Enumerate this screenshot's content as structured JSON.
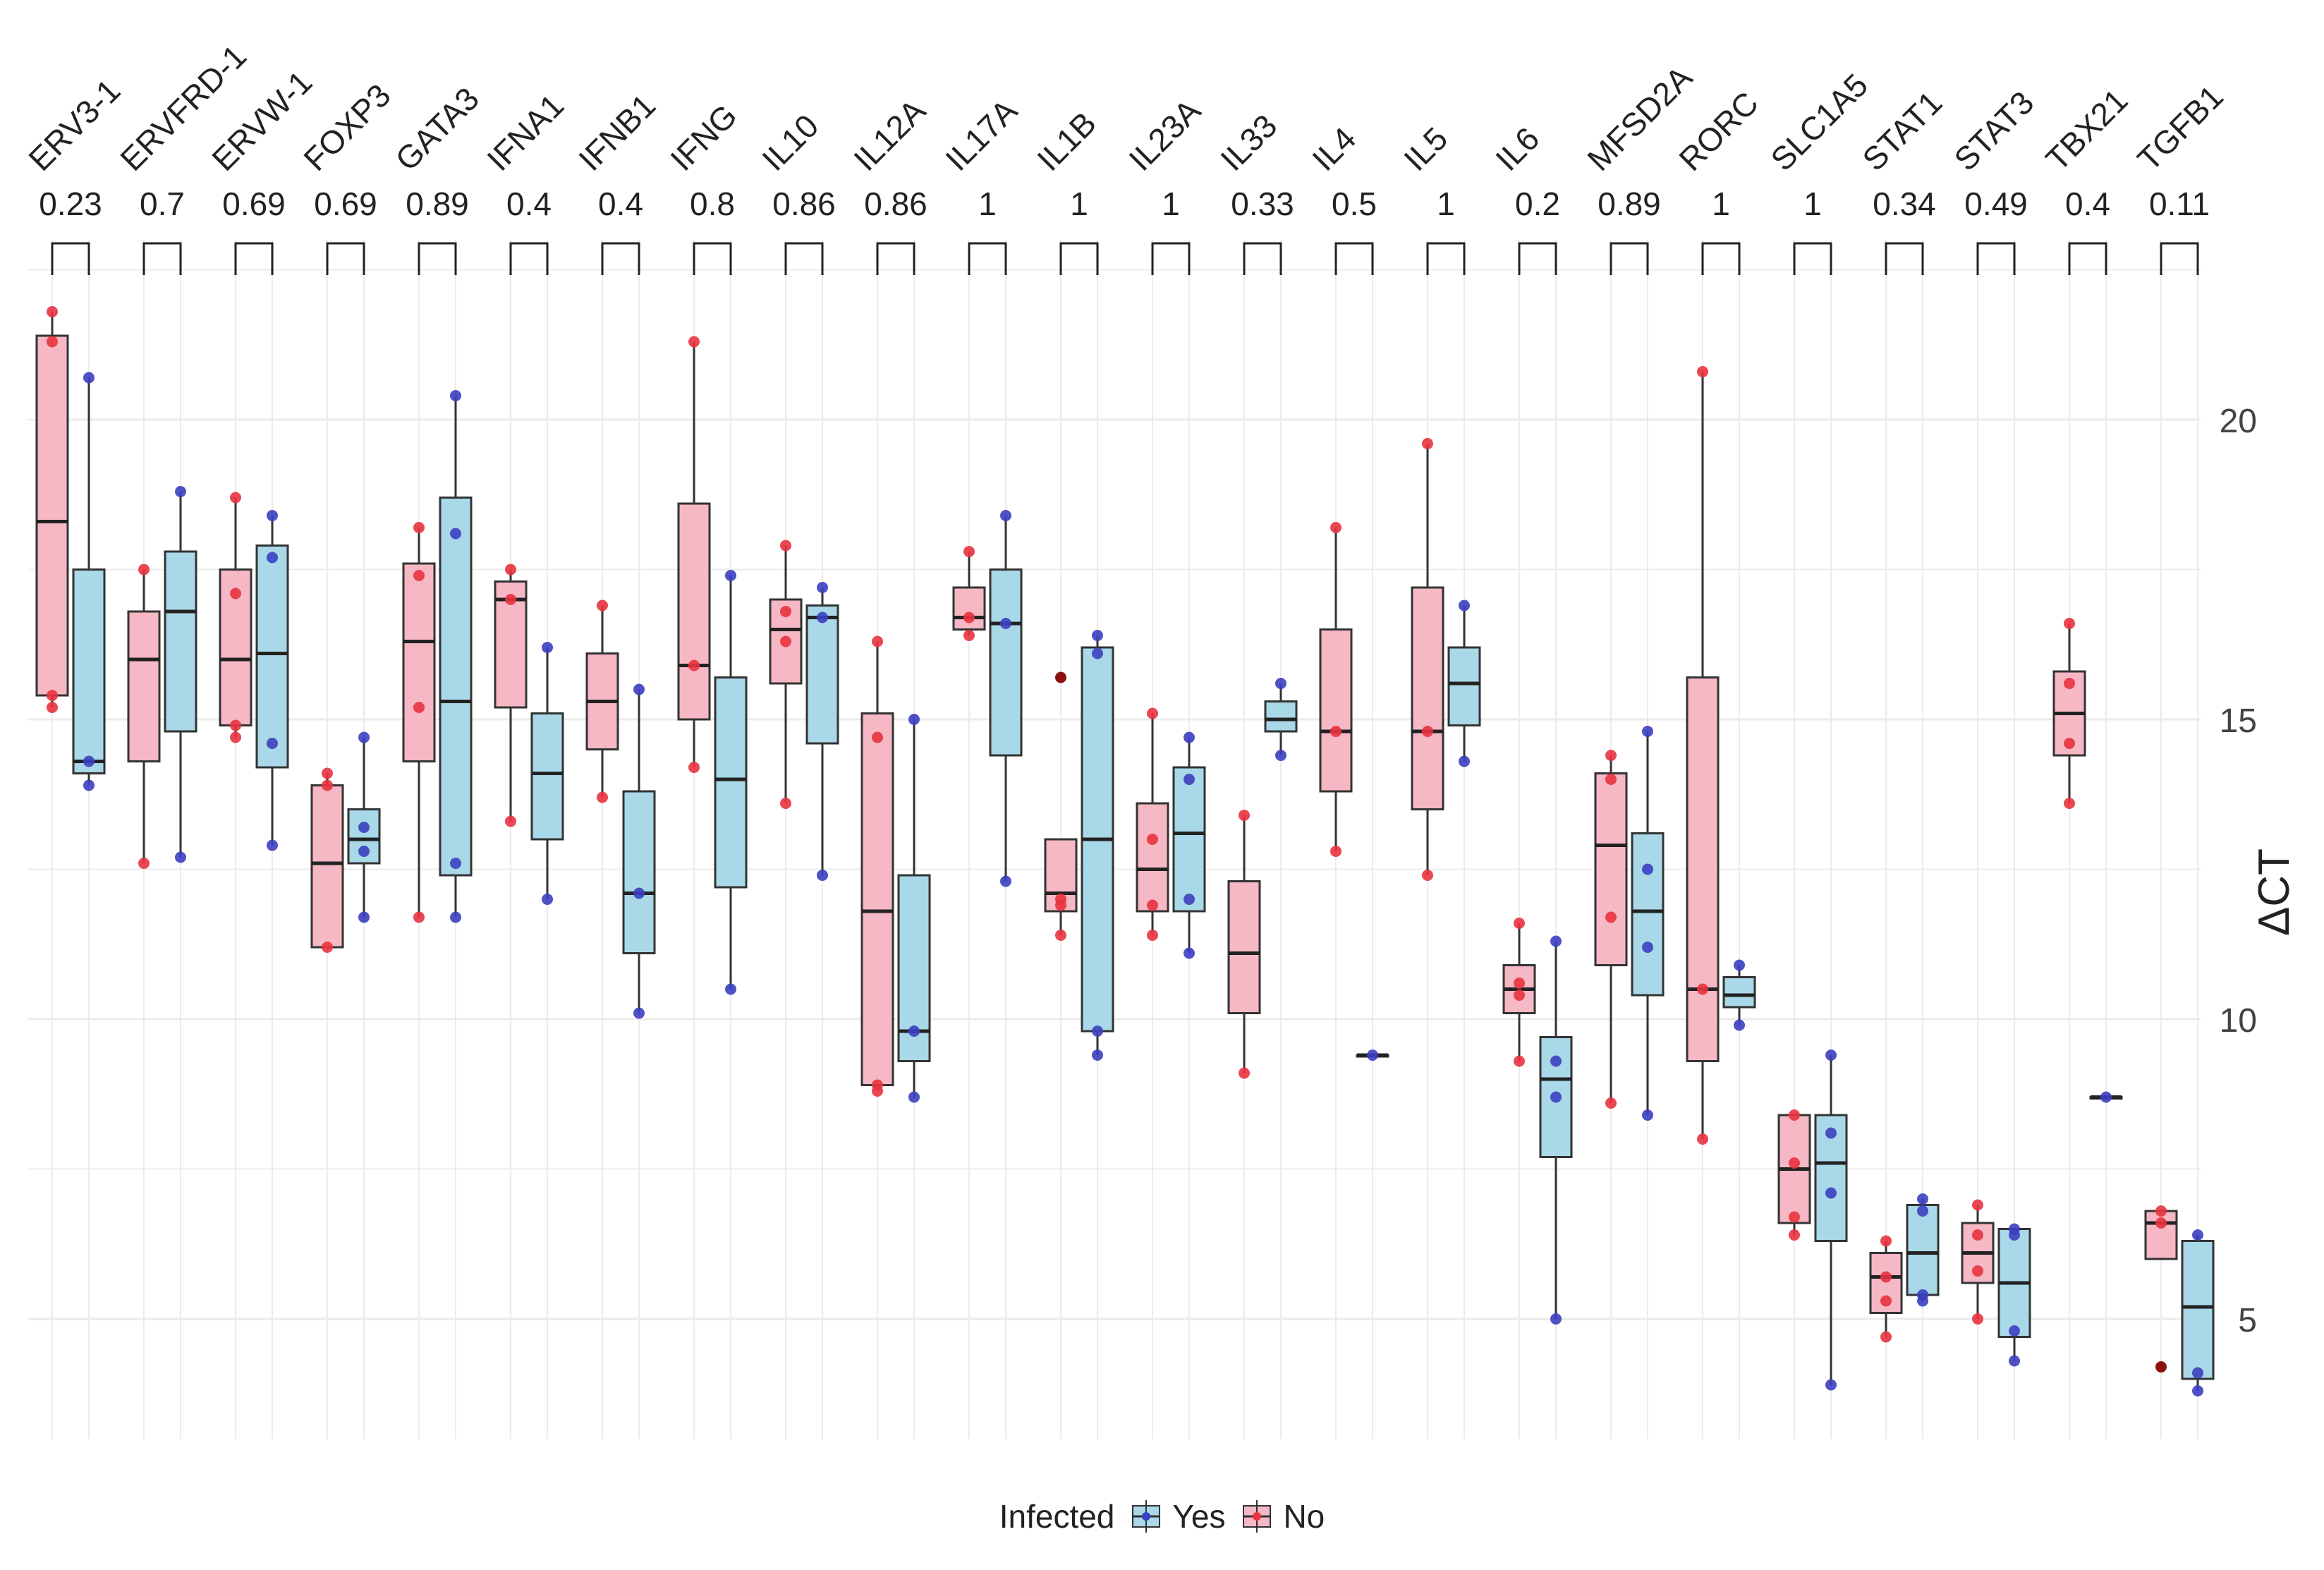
{
  "chart_data": {
    "type": "box",
    "ylabel": "ΔCT",
    "ylim": [
      3,
      23
    ],
    "yticks": [
      5,
      10,
      15,
      20
    ],
    "grid": true,
    "legend_title": "Infected",
    "legend_position": "bottom",
    "series": [
      {
        "name": "Yes",
        "color": "#a9d9e8",
        "point_color": "#3b3fc0"
      },
      {
        "name": "No",
        "color": "#f5b8c4",
        "point_color": "#e8333f"
      }
    ],
    "genes": [
      {
        "gene": "ERV3-1",
        "p": "0.23",
        "No": {
          "min": 15.2,
          "q1": 15.4,
          "median": 18.3,
          "q3": 21.4,
          "max": 21.8,
          "points": [
            21.8,
            21.3,
            15.4,
            15.2
          ]
        },
        "Yes": {
          "min": 13.9,
          "q1": 14.1,
          "median": 14.3,
          "q3": 17.5,
          "max": 20.7,
          "points": [
            20.7,
            14.3,
            13.9
          ]
        }
      },
      {
        "gene": "ERVFRD-1",
        "p": "0.7",
        "No": {
          "min": 12.6,
          "q1": 14.3,
          "median": 16.0,
          "q3": 16.8,
          "max": 17.5,
          "points": [
            17.5,
            12.6
          ]
        },
        "Yes": {
          "min": 12.7,
          "q1": 14.8,
          "median": 16.8,
          "q3": 17.8,
          "max": 18.8,
          "points": [
            18.8,
            12.7
          ]
        }
      },
      {
        "gene": "ERVW-1",
        "p": "0.69",
        "No": {
          "min": 14.7,
          "q1": 14.9,
          "median": 16.0,
          "q3": 17.5,
          "max": 18.7,
          "points": [
            18.7,
            17.1,
            14.9,
            14.7
          ]
        },
        "Yes": {
          "min": 12.9,
          "q1": 14.2,
          "median": 16.1,
          "q3": 17.9,
          "max": 18.4,
          "points": [
            18.4,
            17.7,
            14.6,
            12.9
          ]
        }
      },
      {
        "gene": "FOXP3",
        "p": "0.69",
        "No": {
          "min": 11.2,
          "q1": 11.2,
          "median": 12.6,
          "q3": 13.9,
          "max": 14.1,
          "points": [
            14.1,
            13.9,
            11.2
          ]
        },
        "Yes": {
          "min": 11.7,
          "q1": 12.6,
          "median": 13.0,
          "q3": 13.5,
          "max": 14.7,
          "points": [
            14.7,
            13.2,
            12.8,
            11.7
          ]
        }
      },
      {
        "gene": "GATA3",
        "p": "0.89",
        "No": {
          "min": 11.7,
          "q1": 14.3,
          "median": 16.3,
          "q3": 17.6,
          "max": 18.2,
          "points": [
            18.2,
            17.4,
            15.2,
            11.7
          ]
        },
        "Yes": {
          "min": 11.7,
          "q1": 12.4,
          "median": 15.3,
          "q3": 18.7,
          "max": 20.4,
          "points": [
            20.4,
            18.1,
            12.6,
            11.7
          ]
        }
      },
      {
        "gene": "IFNA1",
        "p": "0.4",
        "No": {
          "min": 13.3,
          "q1": 15.2,
          "median": 17.0,
          "q3": 17.3,
          "max": 17.5,
          "points": [
            17.5,
            17.0,
            13.3
          ]
        },
        "Yes": {
          "min": 12.0,
          "q1": 13.0,
          "median": 14.1,
          "q3": 15.1,
          "max": 16.2,
          "points": [
            16.2,
            12.0
          ]
        }
      },
      {
        "gene": "IFNB1",
        "p": "0.4",
        "No": {
          "min": 13.7,
          "q1": 14.5,
          "median": 15.3,
          "q3": 16.1,
          "max": 16.9,
          "points": [
            16.9,
            13.7
          ]
        },
        "Yes": {
          "min": 10.1,
          "q1": 11.1,
          "median": 12.1,
          "q3": 13.8,
          "max": 15.5,
          "points": [
            15.5,
            12.1,
            10.1
          ]
        }
      },
      {
        "gene": "IFNG",
        "p": "0.8",
        "No": {
          "min": 14.2,
          "q1": 15.0,
          "median": 15.9,
          "q3": 18.6,
          "max": 21.3,
          "points": [
            21.3,
            15.9,
            14.2
          ]
        },
        "Yes": {
          "min": 10.5,
          "q1": 12.2,
          "median": 14.0,
          "q3": 15.7,
          "max": 17.4,
          "points": [
            17.4,
            10.5
          ]
        }
      },
      {
        "gene": "IL10",
        "p": "0.86",
        "No": {
          "min": 13.6,
          "q1": 15.6,
          "median": 16.5,
          "q3": 17.0,
          "max": 17.9,
          "points": [
            17.9,
            16.8,
            16.3,
            13.6
          ]
        },
        "Yes": {
          "min": 12.4,
          "q1": 14.6,
          "median": 16.7,
          "q3": 16.9,
          "max": 17.2,
          "points": [
            17.2,
            16.7,
            12.4
          ]
        }
      },
      {
        "gene": "IL12A",
        "p": "0.86",
        "No": {
          "min": 8.8,
          "q1": 8.9,
          "median": 11.8,
          "q3": 15.1,
          "max": 16.3,
          "points": [
            16.3,
            14.7,
            8.9,
            8.8
          ]
        },
        "Yes": {
          "min": 8.7,
          "q1": 9.3,
          "median": 9.8,
          "q3": 12.4,
          "max": 15.0,
          "points": [
            15.0,
            9.8,
            8.7
          ]
        }
      },
      {
        "gene": "IL17A",
        "p": "1",
        "No": {
          "min": 16.4,
          "q1": 16.5,
          "median": 16.7,
          "q3": 17.2,
          "max": 17.8,
          "points": [
            17.8,
            16.7,
            16.4
          ]
        },
        "Yes": {
          "min": 12.3,
          "q1": 14.4,
          "median": 16.6,
          "q3": 17.5,
          "max": 18.4,
          "points": [
            18.4,
            16.6,
            12.3
          ]
        }
      },
      {
        "gene": "IL1B",
        "p": "1",
        "No": {
          "min": 11.4,
          "q1": 11.8,
          "median": 12.1,
          "q3": 13.0,
          "max": 13.0,
          "points": [
            12.0,
            11.9,
            11.4
          ],
          "outliers": [
            15.7
          ]
        },
        "Yes": {
          "min": 9.4,
          "q1": 9.8,
          "median": 13.0,
          "q3": 16.2,
          "max": 16.4,
          "points": [
            16.4,
            16.1,
            9.8,
            9.4
          ]
        }
      },
      {
        "gene": "IL23A",
        "p": "1",
        "No": {
          "min": 11.4,
          "q1": 11.8,
          "median": 12.5,
          "q3": 13.6,
          "max": 15.1,
          "points": [
            15.1,
            13.0,
            11.9,
            11.4
          ]
        },
        "Yes": {
          "min": 11.1,
          "q1": 11.8,
          "median": 13.1,
          "q3": 14.2,
          "max": 14.7,
          "points": [
            14.7,
            14.0,
            12.0,
            11.1
          ]
        }
      },
      {
        "gene": "IL33",
        "p": "0.33",
        "No": {
          "min": 9.1,
          "q1": 10.1,
          "median": 11.1,
          "q3": 12.3,
          "max": 13.4,
          "points": [
            13.4,
            9.1
          ]
        },
        "Yes": {
          "min": 14.4,
          "q1": 14.8,
          "median": 15.0,
          "q3": 15.3,
          "max": 15.6,
          "points": [
            15.6,
            14.4
          ]
        }
      },
      {
        "gene": "IL4",
        "p": "0.5",
        "No": {
          "min": 12.8,
          "q1": 13.8,
          "median": 14.8,
          "q3": 16.5,
          "max": 18.2,
          "points": [
            18.2,
            14.8,
            12.8
          ]
        },
        "Yes": {
          "min": 9.4,
          "q1": 9.4,
          "median": 9.4,
          "q3": 9.4,
          "max": 9.4,
          "points": [
            9.4
          ]
        }
      },
      {
        "gene": "IL5",
        "p": "1",
        "No": {
          "min": 12.4,
          "q1": 13.5,
          "median": 14.8,
          "q3": 17.2,
          "max": 19.6,
          "points": [
            19.6,
            14.8,
            12.4
          ]
        },
        "Yes": {
          "min": 14.3,
          "q1": 14.9,
          "median": 15.6,
          "q3": 16.2,
          "max": 16.9,
          "points": [
            16.9,
            14.3
          ]
        }
      },
      {
        "gene": "IL6",
        "p": "0.2",
        "No": {
          "min": 9.3,
          "q1": 10.1,
          "median": 10.5,
          "q3": 10.9,
          "max": 11.6,
          "points": [
            11.6,
            10.6,
            10.4,
            9.3
          ]
        },
        "Yes": {
          "min": 5.0,
          "q1": 7.7,
          "median": 9.0,
          "q3": 9.7,
          "max": 11.3,
          "points": [
            11.3,
            9.3,
            8.7,
            5.0
          ]
        }
      },
      {
        "gene": "MFSD2A",
        "p": "0.89",
        "No": {
          "min": 8.6,
          "q1": 10.9,
          "median": 12.9,
          "q3": 14.1,
          "max": 14.4,
          "points": [
            14.4,
            14.0,
            11.7,
            8.6
          ]
        },
        "Yes": {
          "min": 8.4,
          "q1": 10.4,
          "median": 11.8,
          "q3": 13.1,
          "max": 14.8,
          "points": [
            14.8,
            12.5,
            11.2,
            8.4
          ]
        }
      },
      {
        "gene": "RORC",
        "p": "1",
        "No": {
          "min": 8.0,
          "q1": 9.3,
          "median": 10.5,
          "q3": 15.7,
          "max": 20.8,
          "points": [
            20.8,
            10.5,
            8.0
          ]
        },
        "Yes": {
          "min": 9.9,
          "q1": 10.2,
          "median": 10.4,
          "q3": 10.7,
          "max": 10.9,
          "points": [
            10.9,
            9.9
          ]
        }
      },
      {
        "gene": "SLC1A5",
        "p": "1",
        "No": {
          "min": 6.4,
          "q1": 6.6,
          "median": 7.5,
          "q3": 8.4,
          "max": 8.4,
          "points": [
            8.4,
            7.6,
            6.7,
            6.4
          ]
        },
        "Yes": {
          "min": 3.9,
          "q1": 6.3,
          "median": 7.6,
          "q3": 8.4,
          "max": 9.4,
          "points": [
            9.4,
            8.1,
            7.1,
            3.9
          ]
        }
      },
      {
        "gene": "STAT1",
        "p": "0.34",
        "No": {
          "min": 4.7,
          "q1": 5.1,
          "median": 5.7,
          "q3": 6.1,
          "max": 6.3,
          "points": [
            6.3,
            5.7,
            5.3,
            4.7
          ]
        },
        "Yes": {
          "min": 5.3,
          "q1": 5.4,
          "median": 6.1,
          "q3": 6.9,
          "max": 7.0,
          "points": [
            7.0,
            6.8,
            5.4,
            5.3
          ]
        }
      },
      {
        "gene": "STAT3",
        "p": "0.49",
        "No": {
          "min": 5.0,
          "q1": 5.6,
          "median": 6.1,
          "q3": 6.6,
          "max": 6.9,
          "points": [
            6.9,
            6.4,
            5.8,
            5.0
          ]
        },
        "Yes": {
          "min": 4.3,
          "q1": 4.7,
          "median": 5.6,
          "q3": 6.5,
          "max": 6.5,
          "points": [
            6.5,
            6.4,
            4.8,
            4.3
          ]
        }
      },
      {
        "gene": "TBX21",
        "p": "0.4",
        "No": {
          "min": 13.6,
          "q1": 14.4,
          "median": 15.1,
          "q3": 15.8,
          "max": 16.6,
          "points": [
            16.6,
            15.6,
            14.6,
            13.6
          ]
        },
        "Yes": {
          "min": 8.7,
          "q1": 8.7,
          "median": 8.7,
          "q3": 8.7,
          "max": 8.7,
          "points": [
            8.7
          ]
        }
      },
      {
        "gene": "TGFB1",
        "p": "0.11",
        "No": {
          "min": 6.0,
          "q1": 6.0,
          "median": 6.6,
          "q3": 6.8,
          "max": 6.8,
          "points": [
            6.8,
            6.6
          ],
          "outliers": [
            4.2
          ]
        },
        "Yes": {
          "min": 3.8,
          "q1": 4.0,
          "median": 5.2,
          "q3": 6.3,
          "max": 6.4,
          "points": [
            6.4,
            4.1,
            3.8
          ]
        }
      }
    ]
  }
}
